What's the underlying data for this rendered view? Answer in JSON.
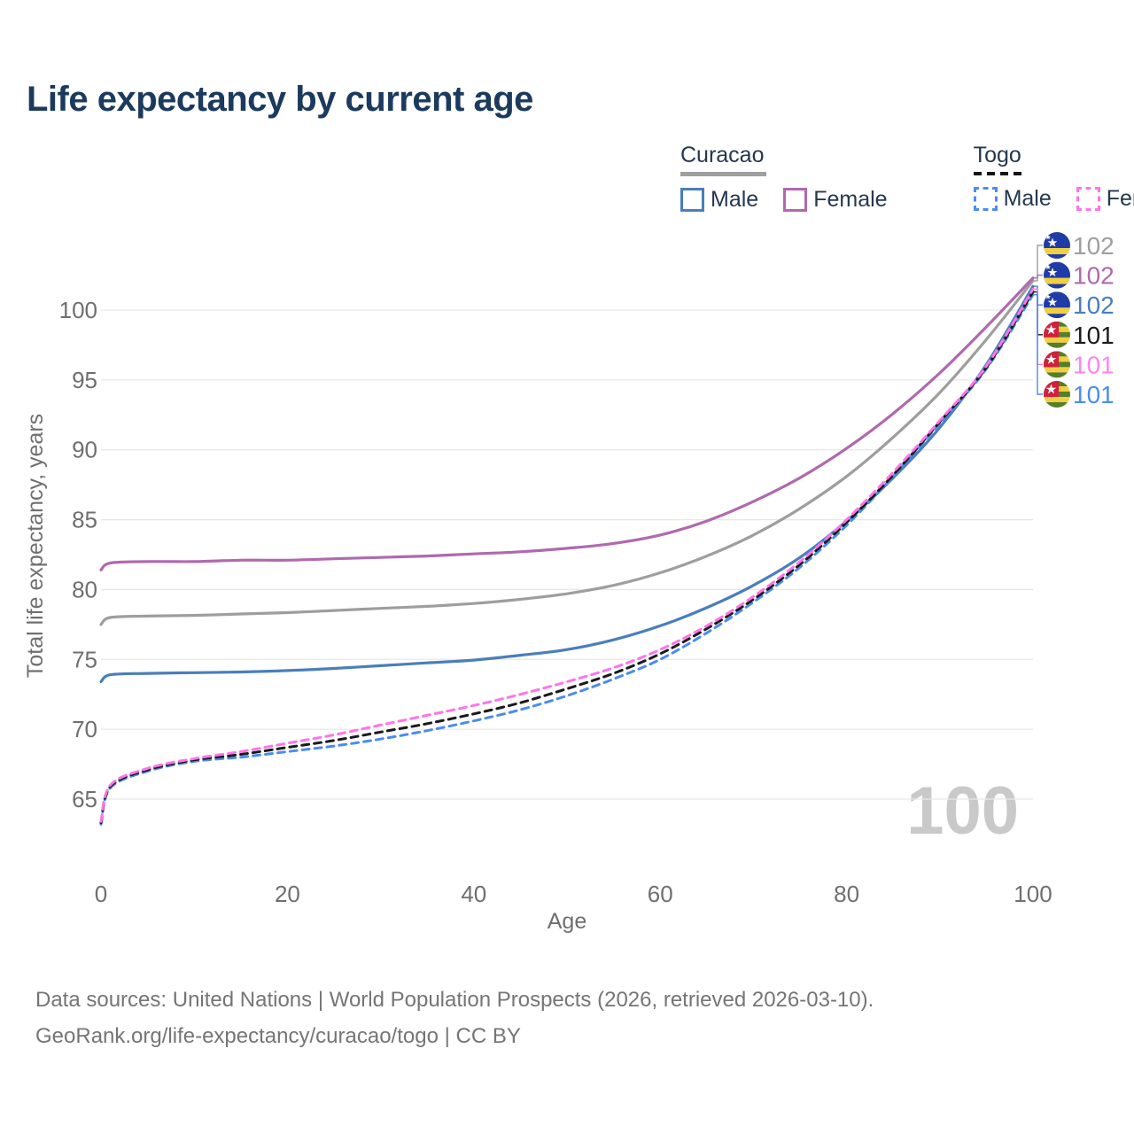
{
  "title": "Life expectancy by current age",
  "legend": {
    "groups": [
      {
        "label": "Curacao",
        "line_style": "solid",
        "underline_color": "#9e9e9e",
        "items": [
          {
            "label": "Male",
            "color": "#4a7ebb"
          },
          {
            "label": "Female",
            "color": "#b069ae"
          }
        ]
      },
      {
        "label": "Togo",
        "line_style": "dashed",
        "underline_color": "#161616",
        "items": [
          {
            "label": "Male",
            "color": "#4a8cf0"
          },
          {
            "label": "Female",
            "color": "#ff74e8"
          }
        ]
      }
    ]
  },
  "chart_data": {
    "type": "line",
    "title": "Life expectancy by current age",
    "xlabel": "Age",
    "ylabel": "Total life expectancy, years",
    "x": [
      0,
      1,
      5,
      10,
      15,
      20,
      25,
      30,
      35,
      40,
      45,
      50,
      55,
      60,
      65,
      70,
      75,
      80,
      85,
      90,
      95,
      100
    ],
    "xticks": [
      0,
      20,
      40,
      60,
      80,
      100
    ],
    "yticks": [
      65,
      70,
      75,
      80,
      85,
      90,
      95,
      100
    ],
    "xlim": [
      0,
      100
    ],
    "ylim": [
      62,
      103.5
    ],
    "grid": "horizontal",
    "gridline_color": "#e8e8e8",
    "tick_color": "#6f6f6f",
    "watermark": "100",
    "watermark_color": "#c9c9c9",
    "legend_position": "top-right",
    "series": [
      {
        "name": "Curacao Both sexes",
        "country": "Curacao",
        "sex": "Both",
        "color": "#9e9e9e",
        "dash": "solid",
        "values": [
          77.5,
          78.0,
          78.1,
          78.15,
          78.25,
          78.35,
          78.5,
          78.65,
          78.8,
          79.0,
          79.3,
          79.7,
          80.3,
          81.2,
          82.4,
          83.9,
          85.8,
          88.1,
          90.9,
          94.1,
          97.9,
          102.1
        ],
        "end_label": "102",
        "end_label_color": "#9e9e9e",
        "flag": "curacao",
        "label_row": 0
      },
      {
        "name": "Curacao Female",
        "country": "Curacao",
        "sex": "Female",
        "color": "#b069ae",
        "dash": "solid",
        "values": [
          81.4,
          81.9,
          82.0,
          82.0,
          82.1,
          82.1,
          82.2,
          82.3,
          82.4,
          82.55,
          82.7,
          82.95,
          83.3,
          83.9,
          84.9,
          86.3,
          88.0,
          90.1,
          92.6,
          95.5,
          98.8,
          102.3
        ],
        "end_label": "102",
        "end_label_color": "#b069ae",
        "flag": "curacao",
        "label_row": 1
      },
      {
        "name": "Curacao Male",
        "country": "Curacao",
        "sex": "Male",
        "color": "#4a7ebb",
        "dash": "solid",
        "values": [
          73.4,
          73.9,
          74.0,
          74.05,
          74.1,
          74.2,
          74.35,
          74.55,
          74.75,
          74.95,
          75.3,
          75.7,
          76.4,
          77.4,
          78.7,
          80.3,
          82.3,
          84.9,
          88.0,
          91.6,
          96.1,
          101.7
        ],
        "end_label": "102",
        "end_label_color": "#4a7ebb",
        "flag": "curacao",
        "label_row": 2
      },
      {
        "name": "Togo Male",
        "country": "Togo",
        "sex": "Male",
        "color": "#4a8cf0",
        "dash": "dashed",
        "values": [
          63.2,
          65.8,
          67.0,
          67.7,
          68.0,
          68.4,
          68.8,
          69.3,
          69.9,
          70.6,
          71.4,
          72.4,
          73.6,
          75.0,
          76.9,
          79.1,
          81.6,
          84.6,
          88.1,
          91.9,
          95.8,
          101.1
        ],
        "end_label": "101",
        "end_label_color": "#4a8cf0",
        "flag": "togo",
        "label_row": 5
      },
      {
        "name": "Togo Both sexes",
        "country": "Togo",
        "sex": "Both",
        "color": "#1a1a1a",
        "dash": "dashed",
        "values": [
          63.3,
          65.9,
          67.1,
          67.8,
          68.2,
          68.7,
          69.2,
          69.8,
          70.4,
          71.1,
          71.9,
          72.9,
          74.0,
          75.4,
          77.2,
          79.3,
          81.8,
          84.8,
          88.2,
          92.0,
          95.9,
          101.3
        ],
        "end_label": "101",
        "end_label_color": "#1a1a1a",
        "flag": "togo",
        "label_row": 3
      },
      {
        "name": "Togo Female",
        "country": "Togo",
        "sex": "Female",
        "color": "#ff74e8",
        "dash": "dashed",
        "values": [
          63.4,
          66.0,
          67.2,
          67.9,
          68.4,
          69.0,
          69.6,
          70.3,
          71.0,
          71.7,
          72.5,
          73.4,
          74.4,
          75.7,
          77.4,
          79.5,
          82.0,
          85.0,
          88.4,
          92.1,
          96.0,
          101.5
        ],
        "end_label": "101",
        "end_label_color": "#ff85ea",
        "flag": "togo",
        "label_row": 4
      }
    ]
  },
  "footer": {
    "line1": "Data sources: United Nations | World Population Prospects (2026, retrieved 2026-03-10).",
    "line2": "GeoRank.org/life-expectancy/curacao/togo | CC BY"
  }
}
